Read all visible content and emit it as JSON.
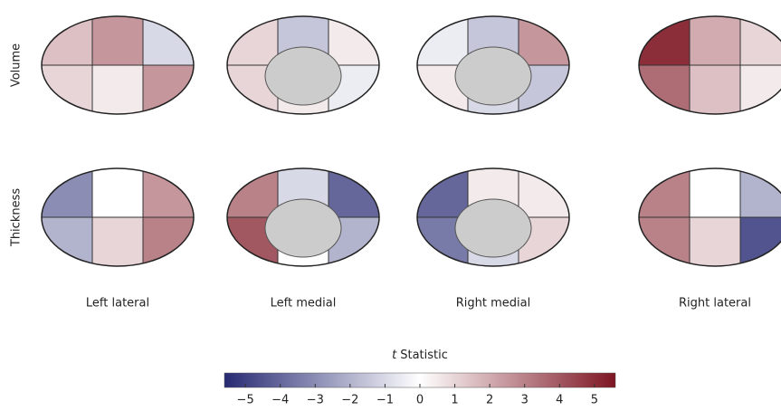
{
  "chart_data": {
    "type": "brain-map",
    "row_labels": [
      "Volume",
      "Thickness"
    ],
    "column_labels": [
      "Left lateral",
      "Left medial",
      "Right medial",
      "Right lateral"
    ],
    "panels": [
      {
        "row": 0,
        "col": 0,
        "values": [
          1.5,
          2.5,
          -1,
          1,
          0.5,
          2.5
        ]
      },
      {
        "row": 0,
        "col": 1,
        "values": [
          1,
          -1.5,
          0.5,
          1,
          0.5,
          -0.5
        ]
      },
      {
        "row": 0,
        "col": 2,
        "values": [
          -0.5,
          -1.5,
          2.5,
          0.5,
          -1,
          -1.5
        ]
      },
      {
        "row": 0,
        "col": 3,
        "values": [
          5,
          2,
          1,
          3.5,
          1.5,
          0.5
        ]
      },
      {
        "row": 1,
        "col": 0,
        "values": [
          -3,
          0,
          2.5,
          -2,
          1,
          3
        ]
      },
      {
        "row": 1,
        "col": 1,
        "values": [
          3,
          -1,
          -4,
          4,
          0,
          -2
        ]
      },
      {
        "row": 1,
        "col": 2,
        "values": [
          -4,
          0.5,
          0.5,
          -3.5,
          -1,
          1
        ]
      },
      {
        "row": 1,
        "col": 3,
        "values": [
          3,
          0,
          -2,
          3,
          1,
          -4.5
        ]
      }
    ],
    "colorbar": {
      "title_var": "t",
      "title": "Statistic",
      "xlim": [
        -5.6,
        5.6
      ],
      "xticks": [
        {
          "value": -5,
          "label": "−5"
        },
        {
          "value": -4,
          "label": "−4"
        },
        {
          "value": -3,
          "label": "−3"
        },
        {
          "value": -2,
          "label": "−2"
        },
        {
          "value": -1,
          "label": "−1"
        },
        0,
        1,
        2,
        3,
        4,
        5
      ],
      "colors": [
        "#272a73",
        "#ffffff",
        "#7d1522"
      ]
    }
  }
}
